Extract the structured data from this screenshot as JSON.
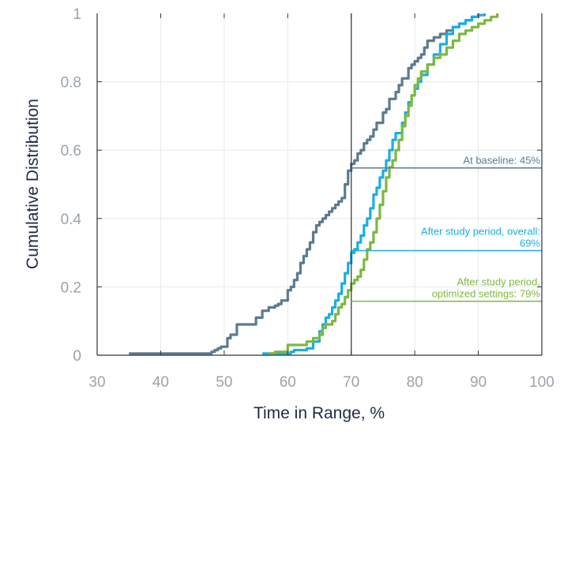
{
  "chart_data": {
    "type": "line",
    "title": "",
    "xlabel": "Time in Range, %",
    "ylabel": "Cumulative Distribution",
    "xlim": [
      30,
      100
    ],
    "ylim": [
      0,
      1
    ],
    "xticks": [
      30,
      40,
      50,
      60,
      70,
      80,
      90,
      100
    ],
    "yticks": [
      {
        "value": 0,
        "label": "0"
      },
      {
        "value": 0.2,
        "label": "0.2"
      },
      {
        "value": 0.4,
        "label": "0.4"
      },
      {
        "value": 0.6,
        "label": "0.6"
      },
      {
        "value": 0.8,
        "label": "0.8"
      },
      {
        "value": 1,
        "label": "1"
      }
    ],
    "grid": true,
    "reference_line_x": 70,
    "series": [
      {
        "color": "#5a7a90",
        "x": [
          35,
          47,
          48,
          48.5,
          49,
          49.5,
          50.5,
          51,
          52,
          54.5,
          55,
          56,
          57,
          58,
          58.5,
          59,
          60,
          60.5,
          61,
          61.5,
          62,
          62.5,
          63,
          63.5,
          64,
          64.5,
          65,
          65.5,
          66,
          66.5,
          67,
          67.5,
          68,
          68.5,
          69,
          69.5,
          70,
          70.5,
          71,
          71.5,
          72,
          72.5,
          73,
          73.5,
          74,
          75,
          75.5,
          76,
          77,
          77.5,
          78,
          79,
          79.5,
          80,
          80.5,
          81,
          81.5,
          82,
          83,
          84,
          85,
          86,
          87,
          88,
          89,
          90
        ],
        "y": [
          0.005,
          0.005,
          0.01,
          0.015,
          0.02,
          0.025,
          0.05,
          0.06,
          0.09,
          0.09,
          0.11,
          0.13,
          0.14,
          0.145,
          0.15,
          0.16,
          0.19,
          0.2,
          0.22,
          0.24,
          0.27,
          0.29,
          0.31,
          0.33,
          0.36,
          0.38,
          0.39,
          0.4,
          0.41,
          0.42,
          0.43,
          0.44,
          0.45,
          0.46,
          0.5,
          0.54,
          0.56,
          0.57,
          0.59,
          0.6,
          0.62,
          0.63,
          0.64,
          0.66,
          0.68,
          0.71,
          0.72,
          0.75,
          0.77,
          0.79,
          0.81,
          0.84,
          0.85,
          0.86,
          0.87,
          0.88,
          0.9,
          0.92,
          0.93,
          0.94,
          0.95,
          0.96,
          0.97,
          0.98,
          0.99,
          1.0
        ]
      },
      {
        "color": "#1aaee0",
        "x": [
          56,
          60,
          60.5,
          61,
          63,
          64,
          65,
          65.5,
          66,
          66.5,
          67,
          67.5,
          68,
          68.5,
          69,
          69.5,
          70,
          70.5,
          71,
          71.5,
          72,
          72.5,
          73,
          73.5,
          74,
          74.5,
          75,
          75.5,
          76,
          76.5,
          77,
          78,
          78.5,
          79,
          79.5,
          80,
          80.5,
          81,
          82,
          83,
          84,
          85,
          86,
          87,
          88,
          89,
          90,
          91
        ],
        "y": [
          0.005,
          0.005,
          0.01,
          0.015,
          0.02,
          0.04,
          0.07,
          0.09,
          0.11,
          0.12,
          0.14,
          0.16,
          0.18,
          0.21,
          0.24,
          0.27,
          0.3,
          0.31,
          0.33,
          0.35,
          0.38,
          0.4,
          0.43,
          0.47,
          0.49,
          0.52,
          0.54,
          0.57,
          0.6,
          0.63,
          0.65,
          0.68,
          0.71,
          0.74,
          0.76,
          0.78,
          0.8,
          0.82,
          0.85,
          0.88,
          0.91,
          0.94,
          0.96,
          0.97,
          0.98,
          0.99,
          0.995,
          1.0
        ]
      },
      {
        "color": "#7db83e",
        "x": [
          57,
          58,
          60,
          63,
          64,
          65,
          65.5,
          66,
          67,
          67.5,
          68,
          68.5,
          69,
          69.5,
          70,
          70.5,
          71,
          71.5,
          72,
          72.5,
          73,
          73.5,
          74,
          74.5,
          75,
          75.5,
          76,
          76.5,
          77,
          77.5,
          78,
          78.5,
          79,
          79.5,
          80,
          80.5,
          81,
          82,
          83,
          84,
          85,
          86,
          87,
          88,
          89,
          90,
          91,
          92,
          93
        ],
        "y": [
          0.005,
          0.01,
          0.03,
          0.04,
          0.05,
          0.06,
          0.08,
          0.09,
          0.1,
          0.12,
          0.14,
          0.15,
          0.17,
          0.19,
          0.21,
          0.22,
          0.23,
          0.25,
          0.28,
          0.31,
          0.33,
          0.36,
          0.4,
          0.44,
          0.48,
          0.52,
          0.55,
          0.57,
          0.6,
          0.63,
          0.67,
          0.7,
          0.73,
          0.76,
          0.79,
          0.81,
          0.83,
          0.85,
          0.87,
          0.88,
          0.9,
          0.92,
          0.94,
          0.95,
          0.96,
          0.97,
          0.98,
          0.99,
          1.0
        ]
      }
    ],
    "annotations": [
      {
        "lines": [
          "At baseline: 45%"
        ],
        "color": "#5a7a90",
        "y": 0.548
      },
      {
        "lines": [
          "After study period, overall:",
          "69%"
        ],
        "color": "#1aaee0",
        "y": 0.306
      },
      {
        "lines": [
          "After study period,",
          "optimized settings: 79%"
        ],
        "color": "#7db83e",
        "y": 0.158
      }
    ]
  }
}
